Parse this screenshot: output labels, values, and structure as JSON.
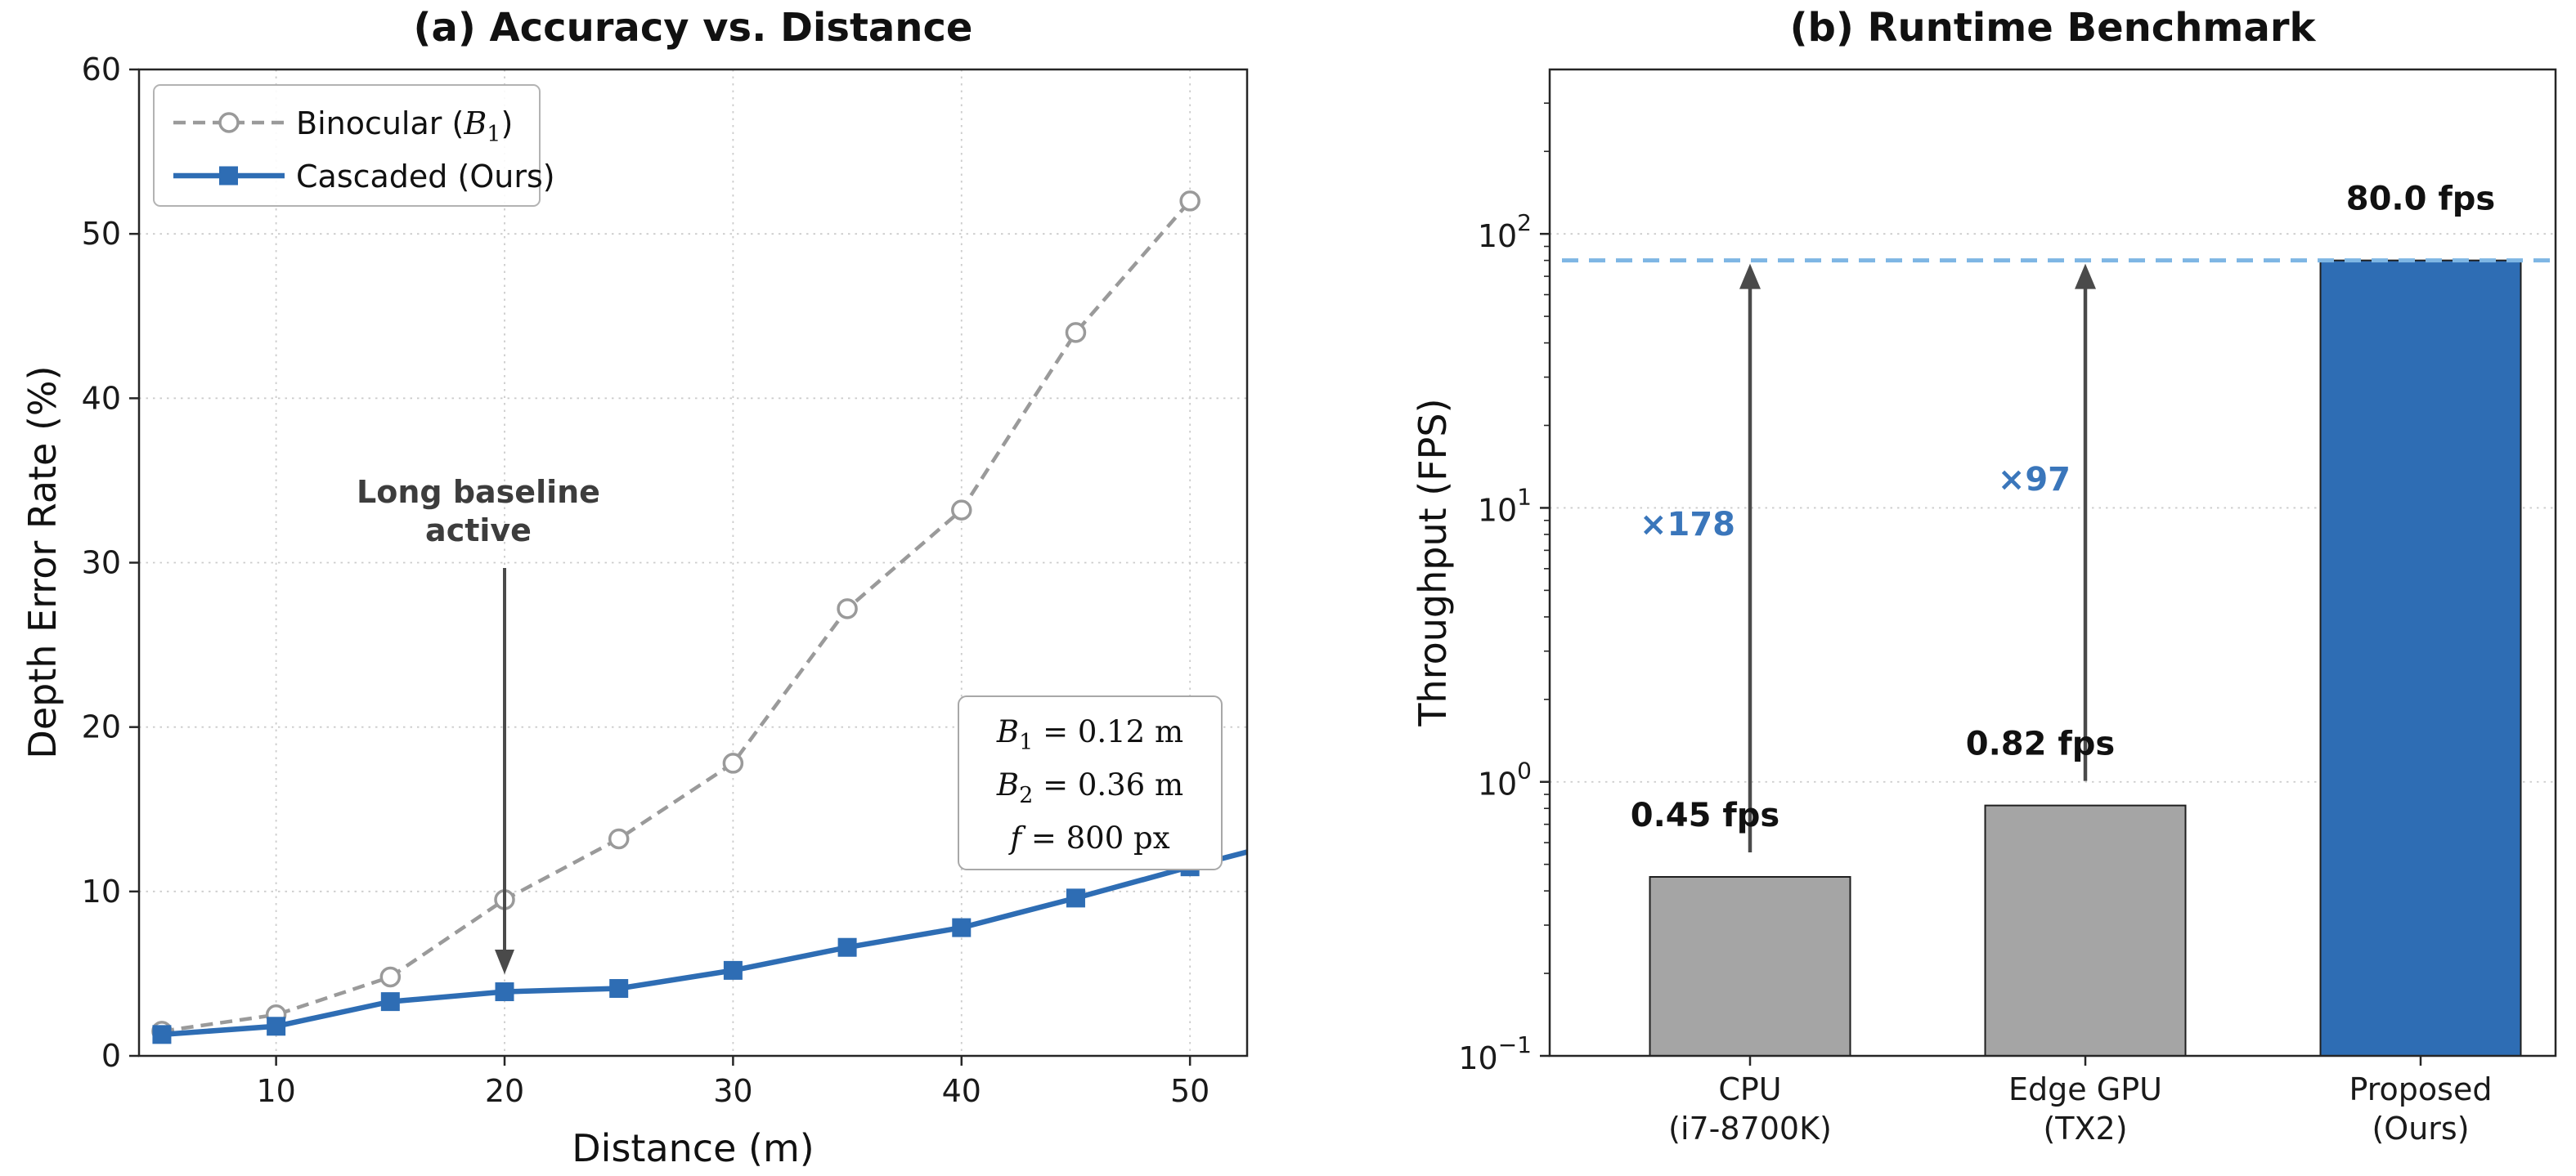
{
  "figure": {
    "background": "#ffffff"
  },
  "chart_data": [
    {
      "type": "line",
      "title": "(a) Accuracy vs. Distance",
      "xlabel": "Distance (m)",
      "ylabel": "Depth Error Rate (%)",
      "xlim": [
        4,
        52.5
      ],
      "ylim": [
        0,
        60
      ],
      "xticks": [
        10,
        20,
        30,
        40,
        50
      ],
      "yticks": [
        0,
        10,
        20,
        30,
        40,
        50,
        60
      ],
      "grid": "dotted",
      "x": [
        5,
        10,
        15,
        20,
        25,
        30,
        35,
        40,
        45,
        50
      ],
      "series": [
        {
          "name": "Binocular (B₁)",
          "values": [
            1.5,
            2.5,
            4.8,
            9.5,
            13.2,
            17.8,
            27.2,
            33.2,
            44.0,
            52.0
          ],
          "color": "#9a9a9a",
          "line_style": "dashed",
          "marker": "circle-open"
        },
        {
          "name": "Cascaded (Ours)",
          "values": [
            1.3,
            1.8,
            3.3,
            3.9,
            4.1,
            5.2,
            6.6,
            7.8,
            9.6,
            11.5
          ],
          "color": "#2e6db4",
          "line_style": "solid",
          "marker": "square",
          "extend_to": {
            "x": 52.5,
            "y": 12.4
          }
        }
      ],
      "legend": {
        "position": "upper-left",
        "items": [
          {
            "parts": [
              {
                "t": "Binocular ("
              },
              {
                "t": "B",
                "style": "mathvar"
              },
              {
                "t": "1",
                "style": "sub"
              },
              {
                "t": ")"
              }
            ]
          },
          {
            "parts": [
              {
                "t": "Cascaded (Ours)"
              }
            ]
          }
        ]
      },
      "annotation": {
        "lines": [
          "Long baseline",
          "active"
        ],
        "color": "#3d3d3d",
        "arrow_x": 20,
        "arrow_tip_y": 5.0
      },
      "info_box": {
        "lines": [
          [
            {
              "t": "B",
              "style": "mathvar"
            },
            {
              "t": "1",
              "style": "sub"
            },
            {
              "t": " = 0.12 m"
            }
          ],
          [
            {
              "t": "B",
              "style": "mathvar"
            },
            {
              "t": "2",
              "style": "sub"
            },
            {
              "t": " = 0.36 m"
            }
          ],
          [
            {
              "t": "f",
              "style": "mathvar"
            },
            {
              "t": " = 800 px"
            }
          ]
        ]
      }
    },
    {
      "type": "bar",
      "title": "(b) Runtime Benchmark",
      "ylabel": "Throughput (FPS)",
      "yscale": "log",
      "ylim": [
        0.1,
        400
      ],
      "ytick_base": "10",
      "ytick_exponents": [
        "−1",
        "0",
        "1",
        "2"
      ],
      "categories": [
        [
          "CPU",
          "(i7-8700K)"
        ],
        [
          "Edge GPU",
          "(TX2)"
        ],
        [
          "Proposed",
          "(Ours)"
        ]
      ],
      "values": [
        0.45,
        0.82,
        80.0
      ],
      "bar_labels": [
        "0.45 fps",
        "0.82 fps",
        "80.0 fps"
      ],
      "bar_colors": [
        "#a5a5a5",
        "#a5a5a5",
        "#2e6db4"
      ],
      "reference_line": {
        "value": 80,
        "color": "#7eb6e4"
      },
      "speedup_color": "#3a76bb",
      "speedups": [
        {
          "label": "×178",
          "bar": 0
        },
        {
          "label": "×97",
          "bar": 1
        }
      ]
    }
  ]
}
